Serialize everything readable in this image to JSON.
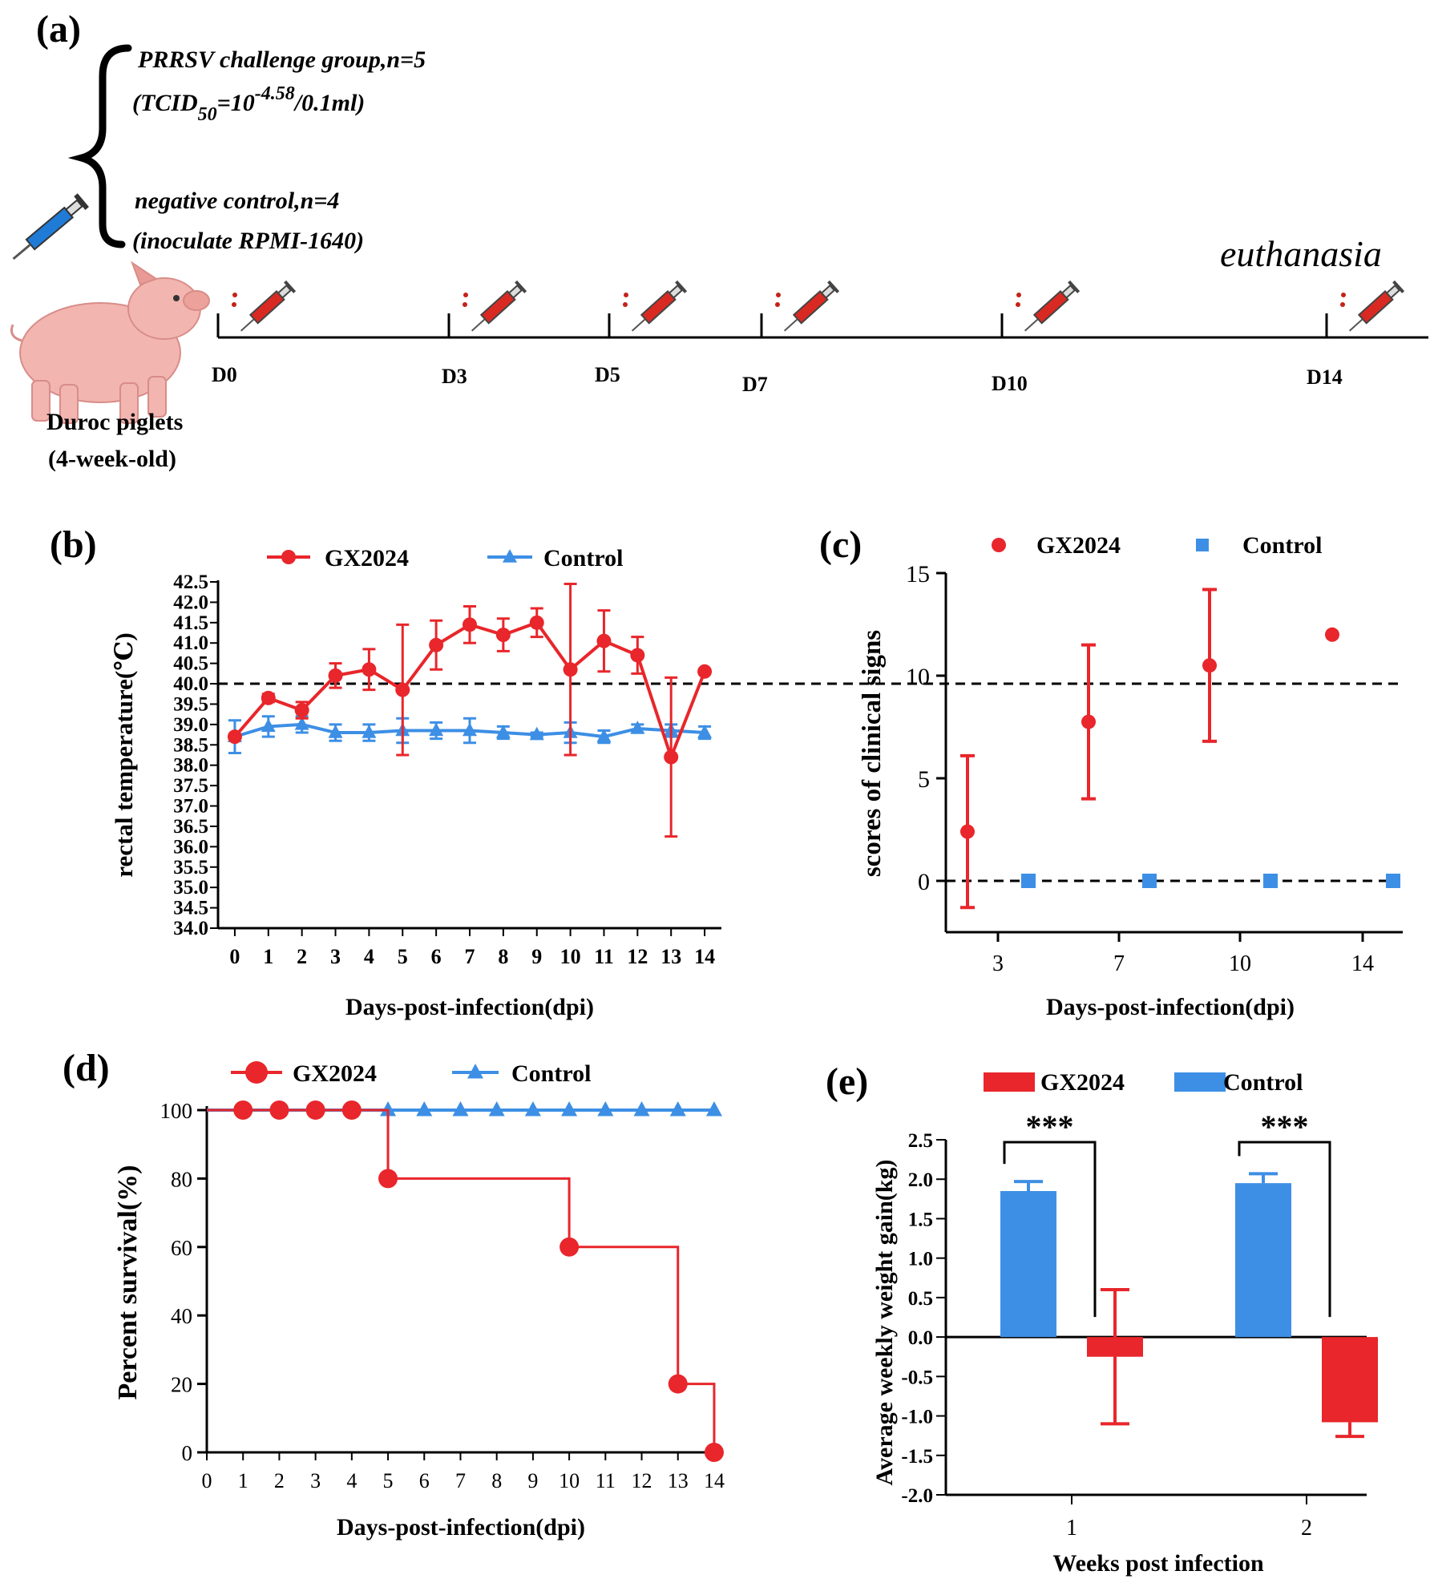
{
  "colors": {
    "gx": "#e8262b",
    "control": "#3d8fe5",
    "axis": "#000000"
  },
  "panel_a": {
    "label": "(a)",
    "group1_line1": "PRRSV challenge group,n=5",
    "group1_tcid": "(TCID",
    "group1_sub": "50",
    "group1_eq": "=10",
    "group1_sup": "-4.58",
    "group1_tail": "/0.1ml)",
    "group2_line1": "negative control,n=4",
    "group2_line2": "(inoculate RPMI-1640)",
    "euthanasia": "euthanasia",
    "pig_line1": "Duroc piglets",
    "pig_line2": "(4-week-old)",
    "timeline_days": [
      "D0",
      "D3",
      "D5",
      "D7",
      "D10",
      "D14"
    ]
  },
  "chart_data": [
    {
      "id": "b",
      "panel_label": "(b)",
      "type": "line",
      "xlabel": "Days-post-infection(dpi)",
      "ylabel": "rectal temperature(℃)",
      "x": [
        0,
        1,
        2,
        3,
        4,
        5,
        6,
        7,
        8,
        9,
        10,
        11,
        12,
        13,
        14
      ],
      "xlim": [
        -0.5,
        14.5
      ],
      "ylim": [
        34.0,
        42.5
      ],
      "yticks": [
        "34.0",
        "34.5",
        "35.0",
        "35.5",
        "36.0",
        "36.5",
        "37.0",
        "37.5",
        "38.0",
        "38.5",
        "39.0",
        "39.5",
        "40.0",
        "40.5",
        "41.0",
        "41.5",
        "42.0",
        "42.5"
      ],
      "reference_line": 40.0,
      "series": [
        {
          "name": "GX2024",
          "marker": "circle",
          "values": [
            38.7,
            39.65,
            39.35,
            40.2,
            40.35,
            39.85,
            40.95,
            41.45,
            41.2,
            41.5,
            40.35,
            41.05,
            40.7,
            38.2,
            40.3
          ],
          "errors": [
            0.0,
            0.1,
            0.2,
            0.3,
            0.5,
            1.6,
            0.6,
            0.45,
            0.4,
            0.35,
            2.1,
            0.75,
            0.45,
            1.95,
            0.0
          ]
        },
        {
          "name": "Control",
          "marker": "triangle",
          "values": [
            38.7,
            38.95,
            39.0,
            38.8,
            38.8,
            38.85,
            38.85,
            38.85,
            38.8,
            38.75,
            38.8,
            38.7,
            38.9,
            38.85,
            38.8
          ],
          "errors": [
            0.4,
            0.25,
            0.2,
            0.2,
            0.2,
            0.3,
            0.2,
            0.3,
            0.15,
            0.05,
            0.25,
            0.15,
            0.1,
            0.15,
            0.15
          ]
        }
      ]
    },
    {
      "id": "c",
      "panel_label": "(c)",
      "type": "scatter",
      "xlabel": "Days-post-infection(dpi)",
      "ylabel": "scores of clinical signs",
      "categories": [
        "3",
        "7",
        "10",
        "14"
      ],
      "ylim": [
        -2.5,
        15
      ],
      "yticks": [
        "0",
        "5",
        "10",
        "15"
      ],
      "reference_line": 0,
      "series": [
        {
          "name": "GX2024",
          "marker": "circle",
          "values": [
            2.4,
            7.75,
            10.5,
            12.0
          ],
          "errors": [
            3.7,
            3.75,
            3.7,
            0.0
          ]
        },
        {
          "name": "Control",
          "marker": "square",
          "values": [
            0,
            0,
            0,
            0
          ],
          "errors": [
            0,
            0,
            0,
            0
          ]
        }
      ]
    },
    {
      "id": "d",
      "panel_label": "(d)",
      "type": "line",
      "xlabel": "Days-post-infection(dpi)",
      "ylabel": "Percent survival(%)",
      "xticks": [
        "0",
        "1",
        "2",
        "3",
        "4",
        "5",
        "6",
        "7",
        "8",
        "9",
        "10",
        "11",
        "12",
        "13",
        "14"
      ],
      "yticks": [
        "0",
        "20",
        "40",
        "60",
        "80",
        "100"
      ],
      "ylim": [
        0,
        100
      ],
      "series": [
        {
          "name": "GX2024",
          "marker": "circle",
          "step": true,
          "x": [
            0,
            1,
            2,
            3,
            4,
            5,
            10,
            13,
            14
          ],
          "values": [
            100,
            100,
            100,
            100,
            100,
            80,
            60,
            20,
            0
          ],
          "marker_x": [
            1,
            2,
            3,
            4,
            5,
            10,
            13,
            14
          ]
        },
        {
          "name": "Control",
          "marker": "triangle",
          "x": [
            0,
            5,
            6,
            7,
            8,
            9,
            10,
            11,
            12,
            13,
            14
          ],
          "values": [
            100,
            100,
            100,
            100,
            100,
            100,
            100,
            100,
            100,
            100,
            100
          ],
          "marker_x": [
            5,
            6,
            7,
            8,
            9,
            10,
            11,
            12,
            13,
            14
          ]
        }
      ]
    },
    {
      "id": "e",
      "panel_label": "(e)",
      "type": "bar",
      "xlabel": "Weeks post infection",
      "ylabel": "Average weekly weight gain(kg)",
      "categories": [
        "1",
        "2"
      ],
      "ylim": [
        -2.0,
        2.5
      ],
      "yticks": [
        "-2.0",
        "-1.5",
        "-1.0",
        "-0.5",
        "0.0",
        "0.5",
        "1.0",
        "1.5",
        "2.0",
        "2.5"
      ],
      "significance": [
        "***",
        "***"
      ],
      "series": [
        {
          "name": "Control",
          "values": [
            1.85,
            1.95
          ],
          "errors": [
            0.12,
            0.12
          ]
        },
        {
          "name": "GX2024",
          "values": [
            -0.25,
            -1.08
          ],
          "errors": [
            0.85,
            0.18
          ]
        }
      ],
      "legend_order": [
        "GX2024",
        "Control"
      ]
    }
  ]
}
